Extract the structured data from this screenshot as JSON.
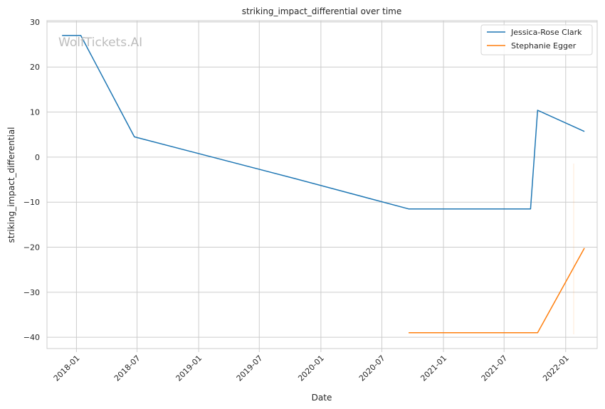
{
  "chart_data": {
    "type": "line",
    "title": "striking_impact_differential over time",
    "xlabel": "Date",
    "ylabel": "striking_impact_differential",
    "watermark": "WolfTickets.AI",
    "x_ticks": [
      "2018-01",
      "2018-07",
      "2019-01",
      "2019-07",
      "2020-01",
      "2020-07",
      "2021-01",
      "2021-07",
      "2022-01"
    ],
    "xlim": [
      "2017-10-05",
      "2022-04-05"
    ],
    "y_ticks": [
      30,
      20,
      10,
      0,
      -10,
      -20,
      -30,
      -40
    ],
    "ylim": [
      -42.5,
      30.3
    ],
    "grid": true,
    "legend_position": "top-right",
    "series": [
      {
        "name": "Jessica-Rose Clark",
        "color": "#1f77b4",
        "x": [
          "2017-11-19",
          "2018-01-14",
          "2018-06-23",
          "2019-10-12",
          "2020-09-19",
          "2021-09-18",
          "2021-10-09",
          "2022-02-26"
        ],
        "y": [
          27,
          27,
          4.5,
          -4.7,
          -11.5,
          -11.5,
          10.4,
          5.7
        ]
      },
      {
        "name": "Stephanie Egger",
        "color": "#ff7f0e",
        "x": [
          "2020-09-19",
          "2021-10-09",
          "2022-02-26"
        ],
        "y": [
          -39,
          -39,
          -20.2
        ]
      }
    ]
  }
}
